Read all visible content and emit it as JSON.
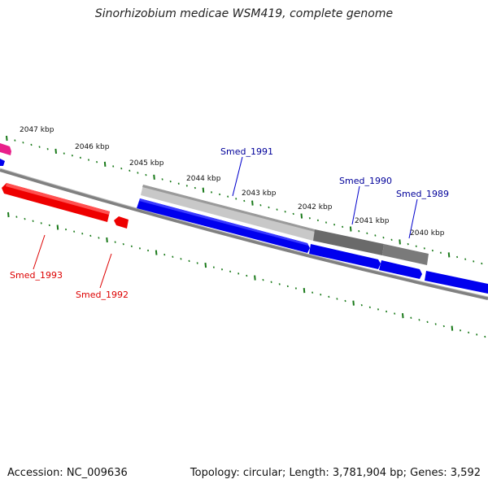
{
  "title": "Sinorhizobium medicae WSM419, complete genome",
  "footer": {
    "accession": "Accession: NC_009636",
    "summary": "Topology: circular; Length: 3,781,904 bp; Genes: 3,592"
  },
  "ruler_labels": [
    "2047 kbp",
    "2046 kbp",
    "2045 kbp",
    "2044 kbp",
    "2043 kbp",
    "2042 kbp",
    "2041 kbp",
    "2040 kbp"
  ],
  "gene_labels": {
    "forward": [
      "Smed_1991",
      "Smed_1990",
      "Smed_1989"
    ],
    "reverse": [
      "Smed_1993",
      "Smed_1992"
    ]
  },
  "colors": {
    "forward_gene": "#0000ee",
    "reverse_gene": "#ee0000",
    "forward_label": "#00009a",
    "reverse_label": "#dd0000",
    "tick": "#1a7a1a",
    "backbone": "#808080",
    "analysis_light": "#c8c8c8",
    "analysis_dark": "#6a6a6a",
    "magenta_feature": "#e8208a"
  }
}
